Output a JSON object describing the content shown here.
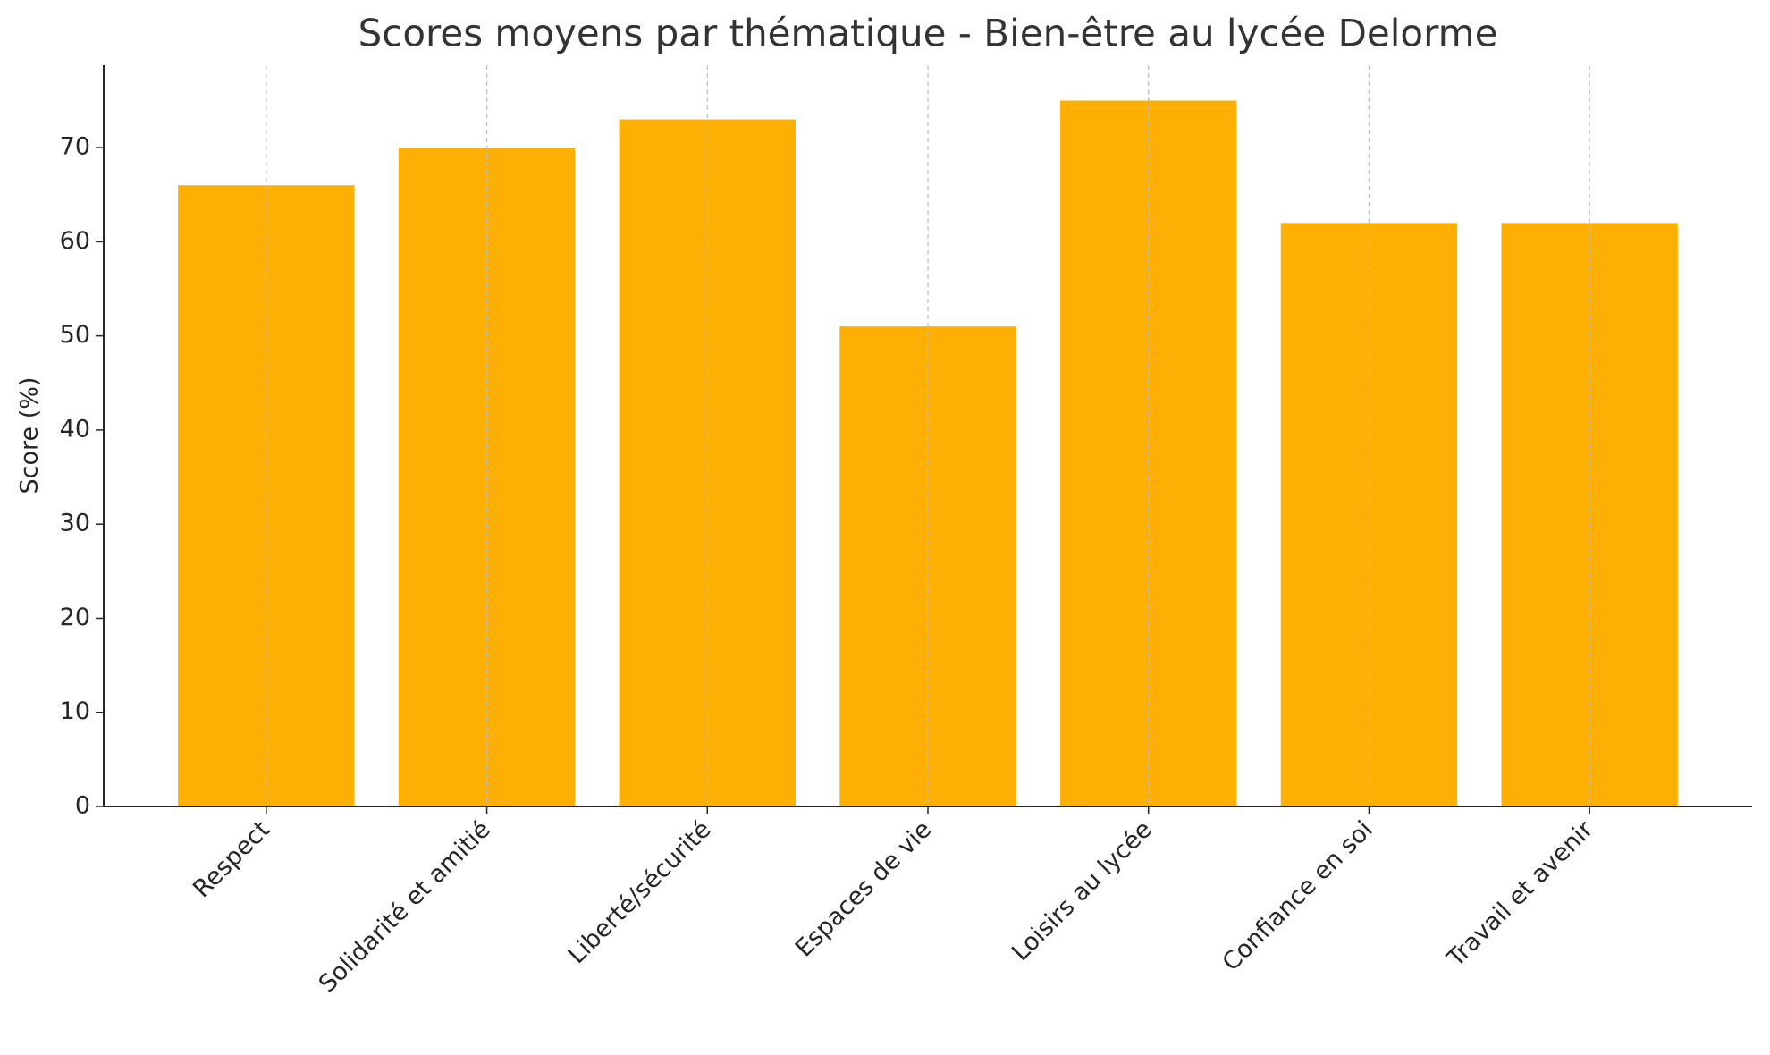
{
  "chart_data": {
    "type": "bar",
    "title": "Scores moyens par thématique - Bien-être au lycée Delorme",
    "y_label": "Score (%)",
    "categories": [
      "Respect",
      "Solidarité et amitié",
      "Liberté/sécurité",
      "Espaces de vie",
      "Loisirs au lycée",
      "Confiance en soi",
      "Travail et avenir"
    ],
    "values": [
      66,
      70,
      73,
      51,
      75,
      62,
      62
    ],
    "color": "#fdb003",
    "ylim": [
      0,
      78.75
    ],
    "yticks": [
      0,
      10,
      20,
      30,
      40,
      50,
      60,
      70
    ],
    "grid": "x"
  }
}
